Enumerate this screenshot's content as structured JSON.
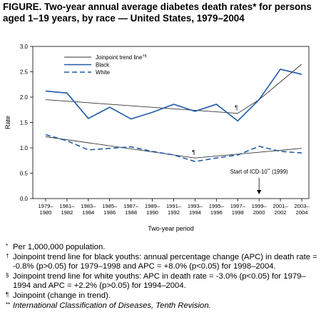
{
  "figure": {
    "title": "FIGURE. Two-year annual average diabetes death rates* for persons aged 1–19 years, by race — United States, 1979–2004"
  },
  "chart_data": {
    "type": "line",
    "ylabel": "Rate",
    "xlabel": "Two-year period",
    "ylim": [
      0,
      3.0
    ],
    "yticks": [
      "0.0",
      "0.5",
      "1.0",
      "1.5",
      "2.0",
      "2.5",
      "3.0"
    ],
    "x_ticks_top": [
      "1979–",
      "1981–",
      "1983–",
      "1985–",
      "1987–",
      "1989–",
      "1991–",
      "1993–",
      "1995–",
      "1997–",
      "1999–",
      "2001–",
      "2003–"
    ],
    "x_ticks_bottom": [
      "1980",
      "1982",
      "1984",
      "1986",
      "1988",
      "1990",
      "1992",
      "1994",
      "1996",
      "1998",
      "2000",
      "2002",
      "2004"
    ],
    "legend": {
      "placement": "top-center",
      "entries": [
        {
          "label": "Joinpoint trend line",
          "sup": "†§",
          "style": "thin-solid"
        },
        {
          "label": "Black",
          "style": "solid-blue"
        },
        {
          "label": "White",
          "style": "dashed-blue"
        }
      ]
    },
    "series": [
      {
        "name": "Black",
        "values": [
          2.12,
          2.08,
          1.58,
          1.8,
          1.57,
          1.7,
          1.86,
          1.72,
          1.86,
          1.53,
          1.95,
          2.55,
          2.45
        ],
        "color": "#1f5aa6",
        "dash": false
      },
      {
        "name": "White",
        "values": [
          1.26,
          1.14,
          0.96,
          0.99,
          1.02,
          0.93,
          0.86,
          0.73,
          0.8,
          0.86,
          1.03,
          0.93,
          0.9
        ],
        "color": "#1f5aa6",
        "dash": true
      }
    ],
    "trend_lines": [
      {
        "series": "Black",
        "x": [
          0,
          9,
          10,
          12
        ],
        "y": [
          1.95,
          1.68,
          1.95,
          2.65
        ],
        "color": "#333333"
      },
      {
        "series": "White",
        "x": [
          0,
          7,
          12
        ],
        "y": [
          1.22,
          0.8,
          0.99
        ],
        "color": "#333333"
      }
    ],
    "joinpoint_marks": [
      {
        "x_index": 9,
        "y": 1.68,
        "symbol": "¶"
      },
      {
        "x_index": 7,
        "y": 0.8,
        "symbol": "¶"
      }
    ],
    "annotation": {
      "text": "Start of ICD-10",
      "sup": "**",
      "suffix": " (1999)",
      "x_index": 10
    }
  },
  "footnotes": [
    {
      "sym": "*",
      "text": "Per 1,000,000 population.",
      "italic": false
    },
    {
      "sym": "†",
      "text": "Joinpoint trend line for black youths: annual percentage change (APC) in death rate = -0.8% (p>0.05) for 1979–1998 and APC = +8.0% (p<0.05) for 1998–2004.",
      "italic": false
    },
    {
      "sym": "§",
      "text": "Joinpoint trend line for white youths: APC in death rate = -3.0% (p<0.05) for 1979–1994 and APC = +2.2% (p>0.05) for 1994–2004.",
      "italic": false
    },
    {
      "sym": "¶",
      "text": "Joinpoint (change in trend).",
      "italic": false
    },
    {
      "sym": "**",
      "text": "International Classification of Diseases, Tenth Revision.",
      "italic": true
    }
  ]
}
